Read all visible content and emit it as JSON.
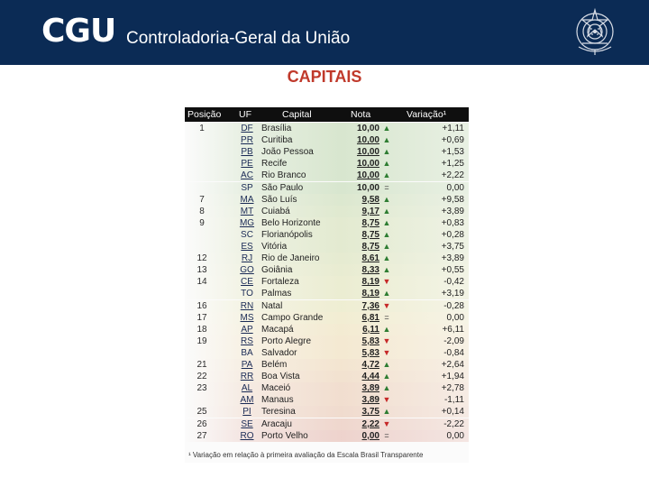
{
  "header": {
    "brand": "CGU",
    "subtitle": "Controladoria-Geral da União"
  },
  "title": "CAPITAIS",
  "table": {
    "columns": [
      "Posição",
      "UF",
      "Capital",
      "Nota",
      "Variação¹"
    ],
    "rows": [
      {
        "pos": "1",
        "uf": "DF",
        "capital": "Brasília",
        "nota": "10,00",
        "trend": "up",
        "var": "+1,11",
        "color": "#6fa84a"
      },
      {
        "pos": "",
        "uf": "PR",
        "capital": "Curitiba",
        "nota": "10,00",
        "trend": "up",
        "var": "+0,69",
        "color": "#6fa84a"
      },
      {
        "pos": "",
        "uf": "PB",
        "capital": "João Pessoa",
        "nota": "10,00",
        "trend": "up",
        "var": "+1,53",
        "color": "#6fa84a"
      },
      {
        "pos": "",
        "uf": "PE",
        "capital": "Recife",
        "nota": "10,00",
        "trend": "up",
        "var": "+1,25",
        "color": "#6fa84a"
      },
      {
        "pos": "",
        "uf": "AC",
        "capital": "Rio Branco",
        "nota": "10,00",
        "trend": "up",
        "var": "+2,22",
        "color": "#6fa84a"
      },
      {
        "pos": "",
        "uf": "SP",
        "capital": "São Paulo",
        "nota": "10,00",
        "trend": "eq",
        "var": "0,00",
        "color": "#6fa84a"
      },
      {
        "pos": "7",
        "uf": "MA",
        "capital": "São Luís",
        "nota": "9,58",
        "trend": "up",
        "var": "+9,58",
        "color": "#80ae4c"
      },
      {
        "pos": "8",
        "uf": "MT",
        "capital": "Cuiabá",
        "nota": "9,17",
        "trend": "up",
        "var": "+3,89",
        "color": "#8db34e"
      },
      {
        "pos": "9",
        "uf": "MG",
        "capital": "Belo Horizonte",
        "nota": "8,75",
        "trend": "up",
        "var": "+0,83",
        "color": "#9bb851"
      },
      {
        "pos": "",
        "uf": "SC",
        "capital": "Florianópolis",
        "nota": "8,75",
        "trend": "up",
        "var": "+0,28",
        "color": "#9bb851"
      },
      {
        "pos": "",
        "uf": "ES",
        "capital": "Vitória",
        "nota": "8,75",
        "trend": "up",
        "var": "+3,75",
        "color": "#9bb851"
      },
      {
        "pos": "12",
        "uf": "RJ",
        "capital": "Rio de Janeiro",
        "nota": "8,61",
        "trend": "up",
        "var": "+3,89",
        "color": "#a6bb53"
      },
      {
        "pos": "13",
        "uf": "GO",
        "capital": "Goiânia",
        "nota": "8,33",
        "trend": "up",
        "var": "+0,55",
        "color": "#b1bf55"
      },
      {
        "pos": "14",
        "uf": "CE",
        "capital": "Fortaleza",
        "nota": "8,19",
        "trend": "down",
        "var": "-0,42",
        "color": "#bbc257"
      },
      {
        "pos": "",
        "uf": "TO",
        "capital": "Palmas",
        "nota": "8,19",
        "trend": "up",
        "var": "+3,19",
        "color": "#bbc257"
      },
      {
        "pos": "16",
        "uf": "RN",
        "capital": "Natal",
        "nota": "7,36",
        "trend": "down",
        "var": "-0,28",
        "color": "#c9c55a"
      },
      {
        "pos": "17",
        "uf": "MS",
        "capital": "Campo Grande",
        "nota": "6,81",
        "trend": "eq",
        "var": "0,00",
        "color": "#d6c35a"
      },
      {
        "pos": "18",
        "uf": "AP",
        "capital": "Macapá",
        "nota": "6,11",
        "trend": "up",
        "var": "+6,11",
        "color": "#dcbb58"
      },
      {
        "pos": "19",
        "uf": "RS",
        "capital": "Porto Alegre",
        "nota": "5,83",
        "trend": "down",
        "var": "-2,09",
        "color": "#dfb356"
      },
      {
        "pos": "",
        "uf": "BA",
        "capital": "Salvador",
        "nota": "5,83",
        "trend": "down",
        "var": "-0,84",
        "color": "#dfb356"
      },
      {
        "pos": "21",
        "uf": "PA",
        "capital": "Belém",
        "nota": "4,72",
        "trend": "up",
        "var": "+2,64",
        "color": "#dba251"
      },
      {
        "pos": "22",
        "uf": "RR",
        "capital": "Boa Vista",
        "nota": "4,44",
        "trend": "up",
        "var": "+1,94",
        "color": "#d8964e"
      },
      {
        "pos": "23",
        "uf": "AL",
        "capital": "Maceió",
        "nota": "3,89",
        "trend": "up",
        "var": "+2,78",
        "color": "#d4874b"
      },
      {
        "pos": "",
        "uf": "AM",
        "capital": "Manaus",
        "nota": "3,89",
        "trend": "down",
        "var": "-1,11",
        "color": "#d4874b"
      },
      {
        "pos": "25",
        "uf": "PI",
        "capital": "Teresina",
        "nota": "3,75",
        "trend": "up",
        "var": "+0,14",
        "color": "#d07c48"
      },
      {
        "pos": "26",
        "uf": "SE",
        "capital": "Aracaju",
        "nota": "2,22",
        "trend": "down",
        "var": "-2,22",
        "color": "#cb6a45"
      },
      {
        "pos": "27",
        "uf": "RO",
        "capital": "Porto Velho",
        "nota": "0,00",
        "trend": "eq",
        "var": "0,00",
        "color": "#c55a42"
      }
    ],
    "footnote": "¹ Variação em relação à primeira avaliação da Escala Brasil Transparente"
  },
  "colors": {
    "header_bg": "#0b2b55",
    "title": "#c0392b",
    "up": "#2e7d32",
    "down": "#c62828"
  },
  "icons": {
    "seal": "coat-of-arms-icon"
  }
}
